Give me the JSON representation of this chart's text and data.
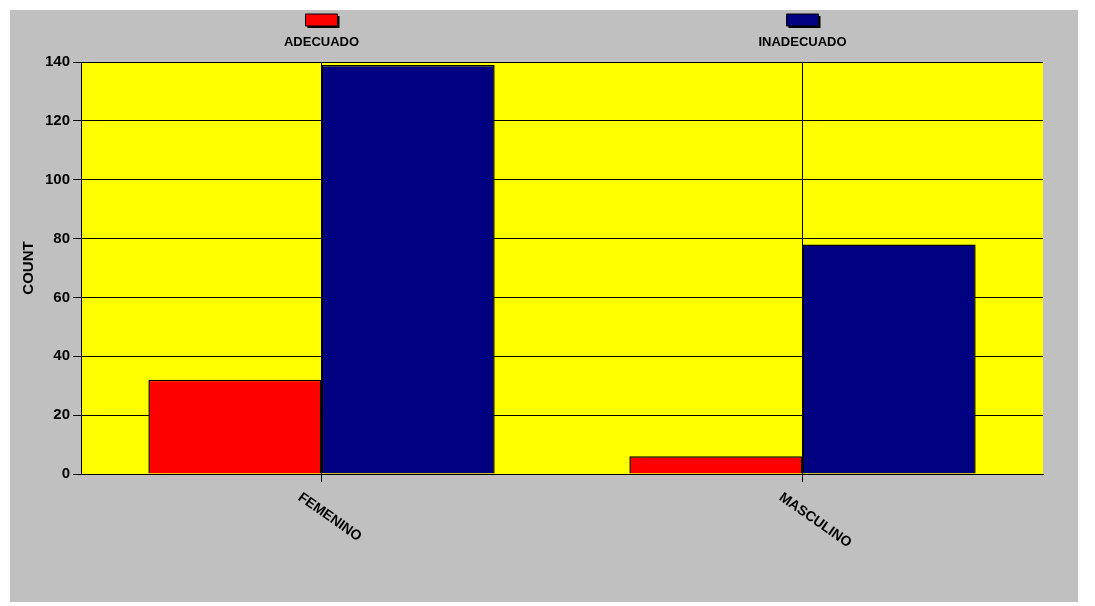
{
  "chart_data": {
    "type": "bar",
    "ylabel": "COUNT",
    "categories": [
      "FEMENINO",
      "MASCULINO"
    ],
    "series": [
      {
        "name": "ADECUADO",
        "color": "#ff0000",
        "values": [
          32,
          6
        ]
      },
      {
        "name": "INADECUADO",
        "color": "#000080",
        "values": [
          139,
          78
        ]
      }
    ],
    "ylim": [
      0,
      140
    ],
    "yticks": [
      0,
      20,
      40,
      60,
      80,
      100,
      120,
      140
    ],
    "grid": true,
    "legend": "top"
  }
}
